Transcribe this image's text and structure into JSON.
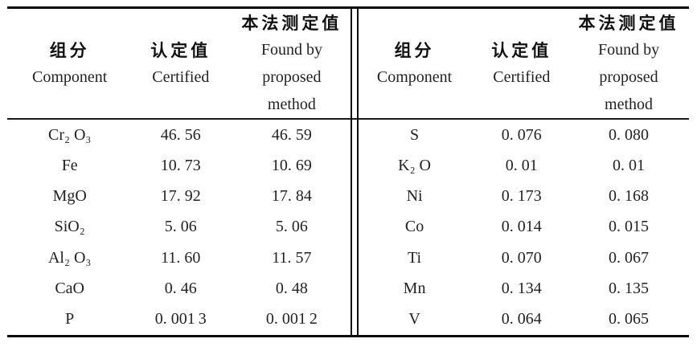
{
  "header": {
    "component_zh": "组分",
    "component_en": "Component",
    "certified_zh": "认定值",
    "certified_en": "Certified",
    "found_zh": "本法测定值",
    "found_en_line1": "Found by",
    "found_en_line2": "proposed",
    "found_en_line3": "method"
  },
  "left": {
    "rows": [
      {
        "component": "Cr₂ O₃",
        "certified": "46. 56",
        "found": "46. 59"
      },
      {
        "component": "Fe",
        "certified": "10. 73",
        "found": "10. 69"
      },
      {
        "component": "MgO",
        "certified": "17. 92",
        "found": "17. 84"
      },
      {
        "component": "SiO₂",
        "certified": "5. 06",
        "found": "5. 06"
      },
      {
        "component": "Al₂ O₃",
        "certified": "11. 60",
        "found": "11. 57"
      },
      {
        "component": "CaO",
        "certified": "0. 46",
        "found": "0. 48"
      },
      {
        "component": "P",
        "certified": "0. 001 3",
        "found": "0. 001 2"
      }
    ]
  },
  "right": {
    "rows": [
      {
        "component": "S",
        "certified": "0. 076",
        "found": "0. 080"
      },
      {
        "component": "K₂ O",
        "certified": "0. 01",
        "found": "0. 01"
      },
      {
        "component": "Ni",
        "certified": "0. 173",
        "found": "0. 168"
      },
      {
        "component": "Co",
        "certified": "0. 014",
        "found": "0. 015"
      },
      {
        "component": "Ti",
        "certified": "0. 070",
        "found": "0. 067"
      },
      {
        "component": "Mn",
        "certified": "0. 134",
        "found": "0. 135"
      },
      {
        "component": "V",
        "certified": "0. 064",
        "found": "0. 065"
      }
    ]
  }
}
